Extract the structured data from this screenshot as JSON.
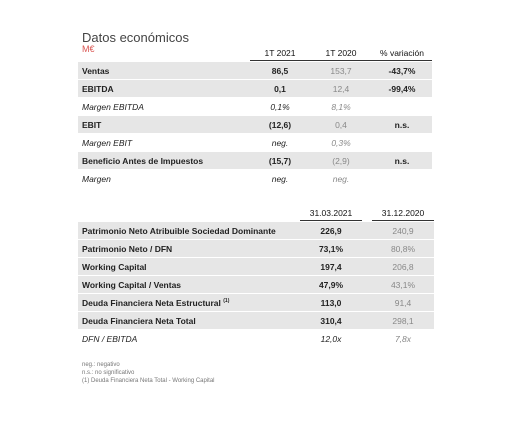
{
  "header": {
    "title": "Datos económicos",
    "unit": "M€"
  },
  "table1": {
    "headers": [
      "1T 2021",
      "1T 2020",
      "% variación"
    ],
    "rows": [
      [
        "Ventas",
        "86,5",
        "153,7",
        "-43,7%"
      ],
      [
        "EBITDA",
        "0,1",
        "12,4",
        "-99,4%"
      ],
      [
        "Margen EBITDA",
        "0,1%",
        "8,1%"
      ],
      [
        "EBIT",
        "(12,6)",
        "0,4",
        "n.s."
      ],
      [
        "Margen EBIT",
        "neg.",
        "0,3%"
      ],
      [
        "Beneficio Antes de Impuestos",
        "(15,7)",
        "(2,9)",
        "n.s."
      ],
      [
        "Margen",
        "neg.",
        "neg."
      ]
    ]
  },
  "table2": {
    "headers": [
      "31.03.2021",
      "31.12.2020"
    ],
    "rows": [
      [
        "Patrimonio Neto Atribuible Sociedad Dominante",
        "226,9",
        "240,9"
      ],
      [
        "Patrimonio Neto / DFN",
        "73,1%",
        "80,8%"
      ],
      [
        "Working Capital",
        "197,4",
        "206,8"
      ],
      [
        "Working Capital / Ventas",
        "47,9%",
        "43,1%"
      ],
      [
        "Deuda Financiera Neta Estructural",
        "113,0",
        "91,4"
      ],
      [
        "Deuda Financiera Neta Total",
        "310,4",
        "298,1"
      ],
      [
        "DFN / EBITDA",
        "12,0x",
        "7,8x"
      ]
    ],
    "note_mark": "(1)"
  },
  "footnotes": [
    "neg.: negativo",
    "n.s.: no significativo",
    "(1)    Deuda Financiera Neta Total - Working Capital"
  ]
}
